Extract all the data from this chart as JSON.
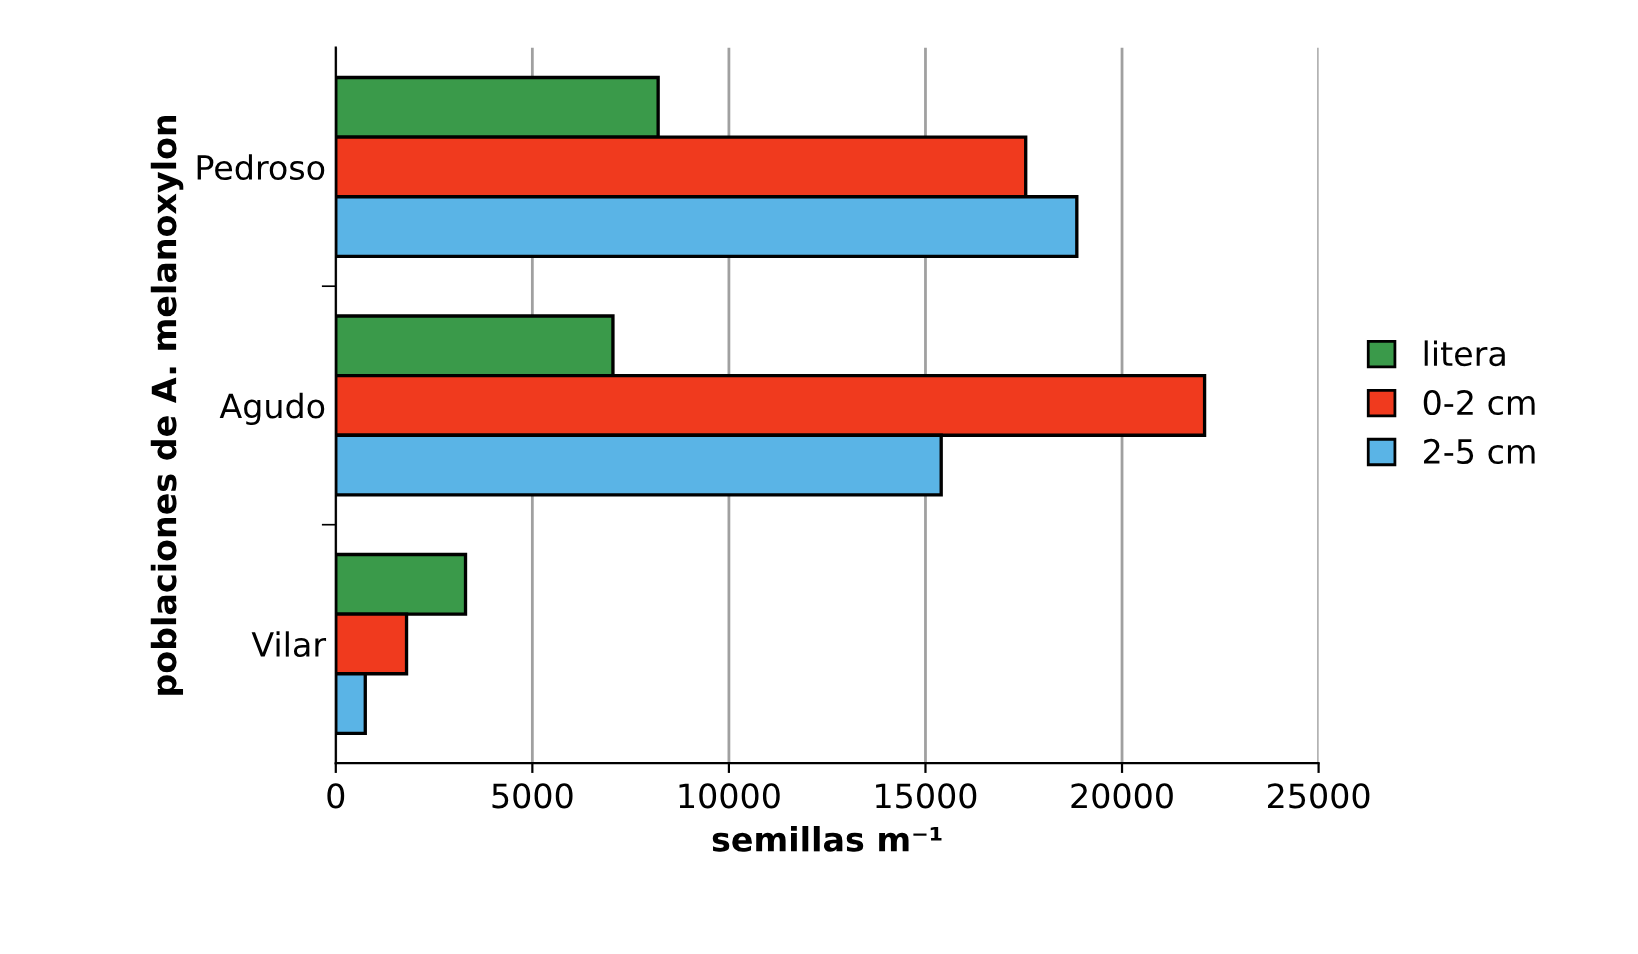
{
  "chart_data": {
    "type": "bar",
    "orientation": "horizontal",
    "xlabel": "semillas m⁻¹",
    "ylabel": "poblaciones de A. melanoxylon",
    "categories": [
      "Pedroso",
      "Agudo",
      "Vilar"
    ],
    "series": [
      {
        "name": "litera",
        "color": "#3a9a4a",
        "values": [
          8200,
          7050,
          3300
        ]
      },
      {
        "name": "0-2 cm",
        "color": "#f03a1e",
        "values": [
          17550,
          22100,
          1800
        ]
      },
      {
        "name": "2-5 cm",
        "color": "#5ab4e6",
        "values": [
          18850,
          15400,
          750
        ]
      }
    ],
    "xlim": [
      0,
      25000
    ],
    "xticks": [
      0,
      5000,
      10000,
      15000,
      20000,
      25000
    ],
    "grid": "x",
    "legend": "right"
  }
}
